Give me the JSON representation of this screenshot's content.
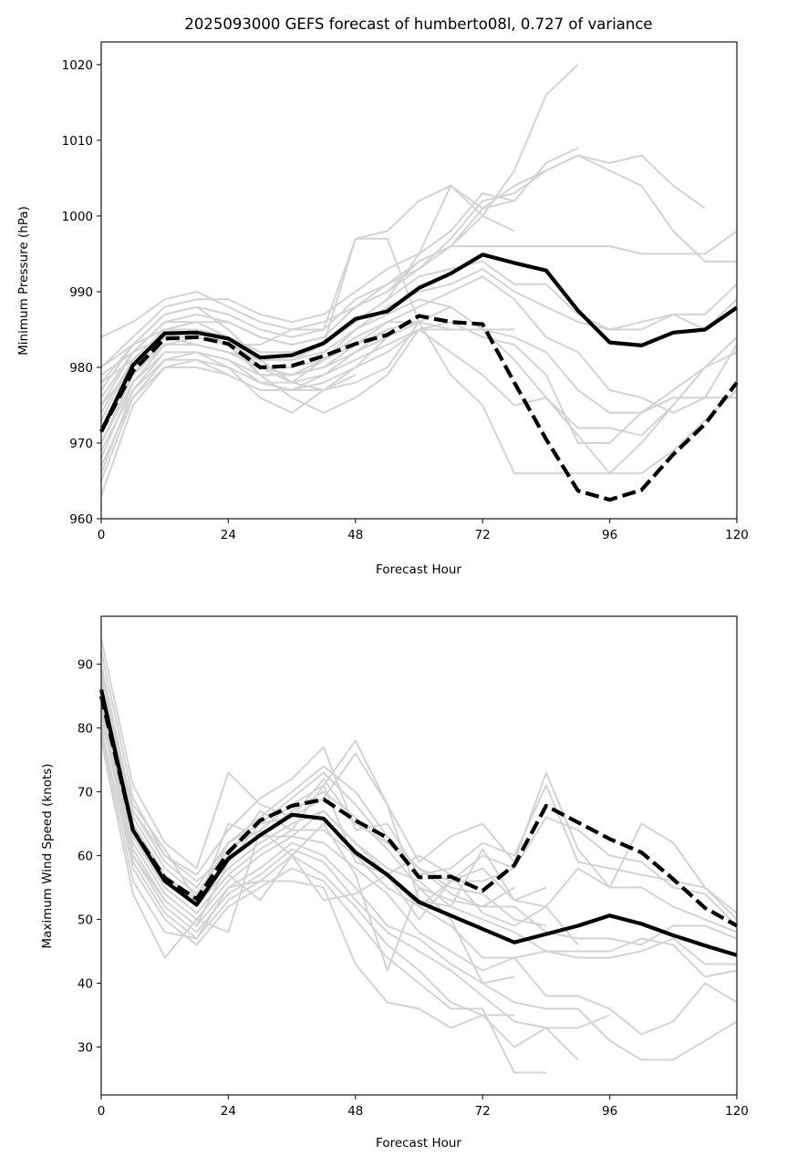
{
  "chart_data": [
    {
      "type": "line",
      "title": "2025093000 GEFS forecast of humberto08l, 0.727 of variance",
      "xlabel": "Forecast Hour",
      "ylabel": "Minimum Pressure (hPa)",
      "xlim": [
        0,
        120
      ],
      "ylim": [
        960,
        1023
      ],
      "xticks": [
        0,
        24,
        48,
        72,
        96,
        120
      ],
      "yticks": [
        960,
        970,
        980,
        990,
        1000,
        1010,
        1020
      ],
      "grid": false,
      "x": [
        0,
        6,
        12,
        18,
        24,
        30,
        36,
        42,
        48,
        54,
        60,
        66,
        72,
        78,
        84,
        90,
        96,
        102,
        108,
        114,
        120
      ],
      "series": [
        {
          "name": "solid-black",
          "style": "solid",
          "color": "#000000",
          "values": [
            971.5,
            980.3,
            984.5,
            984.6,
            983.8,
            981.3,
            981.6,
            983.2,
            986.4,
            987.4,
            990.5,
            992.4,
            994.9,
            993.8,
            992.8,
            987.5,
            983.3,
            982.9,
            984.6,
            985.0,
            987.9
          ]
        },
        {
          "name": "dashed-black",
          "style": "dashed",
          "color": "#000000",
          "values": [
            971.5,
            979.5,
            983.8,
            984.0,
            983.1,
            980.0,
            980.2,
            981.5,
            983.1,
            984.3,
            986.8,
            986.0,
            985.7,
            978.0,
            970.5,
            963.7,
            962.5,
            963.8,
            968.5,
            972.5,
            978.0
          ]
        }
      ],
      "ensemble_color": "#d3d3d3",
      "ensemble": [
        [
          984,
          986,
          989,
          990,
          988,
          986,
          985,
          986,
          988,
          990,
          994,
          996,
          1000,
          1006,
          1016,
          1020
        ],
        [
          980,
          984,
          988,
          989,
          989,
          987,
          986,
          987,
          990,
          993,
          995,
          998,
          1003,
          1002,
          1007,
          1009
        ],
        [
          977,
          983,
          987,
          988,
          987,
          985,
          984,
          985,
          989,
          991,
          993,
          996,
          1001,
          1004,
          1006,
          1008,
          1007,
          1008,
          1004,
          1001
        ],
        [
          975,
          982,
          986,
          987,
          986,
          984,
          983,
          984,
          988,
          990,
          993,
          997,
          1002,
          1003,
          1006,
          1008,
          1006,
          1004,
          998,
          994,
          994
        ],
        [
          973,
          981,
          985,
          986,
          986,
          984,
          983,
          984,
          988,
          991,
          994,
          996,
          996,
          996,
          996,
          996,
          996,
          995,
          995,
          995,
          998
        ],
        [
          972,
          980,
          985,
          985,
          984,
          982,
          982,
          983,
          986,
          989,
          992,
          993,
          994,
          991,
          991,
          987,
          985,
          985,
          987,
          987,
          991
        ],
        [
          970,
          979,
          984,
          984,
          983,
          981,
          981,
          982,
          985,
          988,
          990,
          991,
          993,
          990,
          988,
          986,
          985,
          986,
          987,
          985,
          989
        ],
        [
          968,
          978,
          983,
          983,
          982,
          980,
          980,
          981,
          983,
          986,
          988,
          990,
          992,
          989,
          984,
          982,
          977,
          976,
          974,
          976,
          983
        ],
        [
          966,
          977,
          982,
          982,
          981,
          979,
          979,
          980,
          982,
          984,
          986,
          988,
          985,
          984,
          982,
          977,
          974,
          974,
          977,
          980,
          984
        ],
        [
          965,
          976,
          981,
          981,
          980,
          978,
          978,
          979,
          981,
          983,
          985,
          986,
          984,
          983,
          979,
          970,
          970,
          974,
          976,
          976,
          976
        ],
        [
          963,
          975,
          980,
          980,
          979,
          977,
          977,
          978,
          980,
          982,
          985,
          982,
          979,
          975,
          976,
          972,
          972,
          971,
          975,
          980,
          982
        ],
        [
          979,
          982,
          984,
          983,
          982,
          980,
          978,
          977,
          978,
          980,
          986,
          979,
          975,
          966,
          966,
          966,
          966,
          970,
          975,
          980,
          984
        ],
        [
          978,
          983,
          987,
          988,
          985,
          981,
          978,
          981,
          985,
          987,
          989,
          988,
          985,
          981,
          976,
          971,
          966,
          966,
          969,
          973,
          977
        ],
        [
          976,
          982,
          986,
          986,
          984,
          979,
          976,
          974,
          976,
          979,
          985,
          985,
          985,
          985
        ],
        [
          974,
          981,
          985,
          985,
          984,
          980,
          979,
          980,
          983,
          985,
          986,
          985
        ],
        [
          972,
          979,
          983,
          984,
          983,
          979,
          979,
          981,
          984,
          986,
          986
        ],
        [
          970,
          978,
          982,
          982,
          981,
          978,
          977,
          979,
          982,
          985,
          986
        ],
        [
          969,
          977,
          981,
          982,
          980,
          976,
          974,
          977,
          980,
          984
        ],
        [
          967,
          976,
          980,
          981,
          979,
          977,
          977,
          977,
          979
        ],
        [
          975,
          980,
          983,
          983,
          982,
          981,
          981,
          983,
          997,
          997,
          986
        ],
        [
          978,
          981,
          984,
          985,
          984,
          982,
          982,
          983,
          986,
          989,
          995,
          1004,
          1000,
          998
        ],
        [
          980,
          983,
          985,
          985,
          983,
          983,
          985,
          985,
          997,
          998,
          1002,
          1004,
          1001,
          1002
        ]
      ]
    },
    {
      "type": "line",
      "title": "",
      "xlabel": "Forecast Hour",
      "ylabel": "Maximum Wind Speed (knots)",
      "xlim": [
        0,
        120
      ],
      "ylim": [
        22.5,
        97.5
      ],
      "xticks": [
        0,
        24,
        48,
        72,
        96,
        120
      ],
      "yticks": [
        30,
        40,
        50,
        60,
        70,
        80,
        90
      ],
      "grid": false,
      "x": [
        0,
        6,
        12,
        18,
        24,
        30,
        36,
        42,
        48,
        54,
        60,
        66,
        72,
        78,
        84,
        90,
        96,
        102,
        108,
        114,
        120
      ],
      "series": [
        {
          "name": "solid-black",
          "style": "solid",
          "color": "#000000",
          "values": [
            86,
            64,
            56,
            52.3,
            59.5,
            63.2,
            66.4,
            65.8,
            60.5,
            57,
            52.7,
            50.6,
            48.5,
            46.4,
            47.7,
            49,
            50.6,
            49.3,
            47.5,
            45.9,
            44.4
          ]
        },
        {
          "name": "dashed-black",
          "style": "dashed",
          "color": "#000000",
          "values": [
            85,
            64,
            56.5,
            53.2,
            60.5,
            65.5,
            67.8,
            68.8,
            65.5,
            62.8,
            56.6,
            56.7,
            54.5,
            58.5,
            67.8,
            65.2,
            62.6,
            60.5,
            56.3,
            51.8,
            49
          ]
        },
        {
          "name": "",
          "style": "none",
          "values": []
        }
      ],
      "ensemble_color": "#d3d3d3",
      "ensemble": [
        [
          94,
          71,
          62,
          58,
          73,
          68,
          66,
          69,
          76,
          68,
          59,
          63,
          65,
          59,
          73,
          61,
          55,
          65,
          62,
          55,
          51
        ],
        [
          92,
          69,
          60,
          57,
          64,
          69,
          72,
          77,
          64,
          65,
          57,
          58,
          62,
          60,
          71,
          59,
          58,
          57,
          56,
          55,
          50
        ],
        [
          90,
          67,
          59,
          55,
          62,
          66,
          70,
          74,
          70,
          63,
          58,
          56,
          60,
          58,
          66,
          64,
          60,
          59,
          55,
          54,
          49
        ],
        [
          89,
          66,
          58,
          54,
          61,
          64,
          68,
          71,
          78,
          68,
          53,
          52,
          61,
          53,
          52,
          58,
          55,
          55,
          52,
          50,
          48
        ],
        [
          88,
          65,
          57,
          53,
          60,
          63,
          67,
          70,
          66,
          61,
          55,
          53,
          52,
          52,
          48,
          47,
          47,
          46,
          49,
          49,
          47
        ],
        [
          87,
          64,
          56,
          52,
          58,
          62,
          65,
          67,
          62,
          58,
          56,
          52,
          50,
          48,
          45,
          44,
          44,
          45,
          47,
          43,
          43
        ],
        [
          86,
          63,
          55,
          51,
          57,
          61,
          64,
          64,
          60,
          55,
          52,
          49,
          44,
          44,
          45,
          45,
          45,
          47,
          46,
          41,
          42
        ],
        [
          85,
          62,
          54,
          50,
          56,
          60,
          63,
          62,
          58,
          54,
          48,
          45,
          42,
          44,
          38,
          38,
          36,
          32,
          34,
          40,
          37
        ],
        [
          84,
          61,
          53,
          49,
          55,
          58,
          62,
          60,
          55,
          49,
          47,
          43,
          40,
          37,
          36,
          36,
          31,
          28,
          28,
          31,
          34
        ],
        [
          83,
          60,
          52,
          48,
          54,
          57,
          61,
          59,
          53,
          48,
          45,
          42,
          38,
          34,
          33,
          33,
          35
        ],
        [
          82,
          59,
          51,
          47,
          53,
          56,
          60,
          57,
          52,
          46,
          42,
          37,
          35,
          30,
          33,
          28
        ],
        [
          80,
          58,
          50,
          46,
          52,
          55,
          58,
          56,
          50,
          44,
          40,
          36,
          36,
          26,
          26
        ],
        [
          79,
          56,
          48,
          47,
          55,
          56,
          56,
          55,
          43,
          37,
          36,
          33,
          35,
          35
        ],
        [
          78,
          54,
          44,
          50,
          48,
          64,
          60,
          65,
          57,
          42,
          55,
          50,
          40,
          41
        ],
        [
          81,
          63,
          55,
          51,
          57,
          53,
          60,
          53,
          54,
          57,
          60,
          57,
          51,
          49,
          52,
          46
        ],
        [
          83,
          65,
          57,
          52,
          65,
          63,
          63,
          67,
          62,
          57,
          52,
          56,
          56,
          58
        ],
        [
          86,
          67,
          60,
          56,
          60,
          67,
          64,
          71,
          59,
          57,
          50,
          56,
          58,
          53,
          55
        ],
        [
          87,
          68,
          61,
          53,
          62,
          65,
          69,
          73,
          68,
          62,
          58,
          55,
          54,
          50,
          49
        ],
        [
          84,
          60,
          53,
          49,
          59,
          65,
          66,
          72,
          65,
          62,
          58,
          54,
          52,
          55
        ]
      ]
    }
  ]
}
